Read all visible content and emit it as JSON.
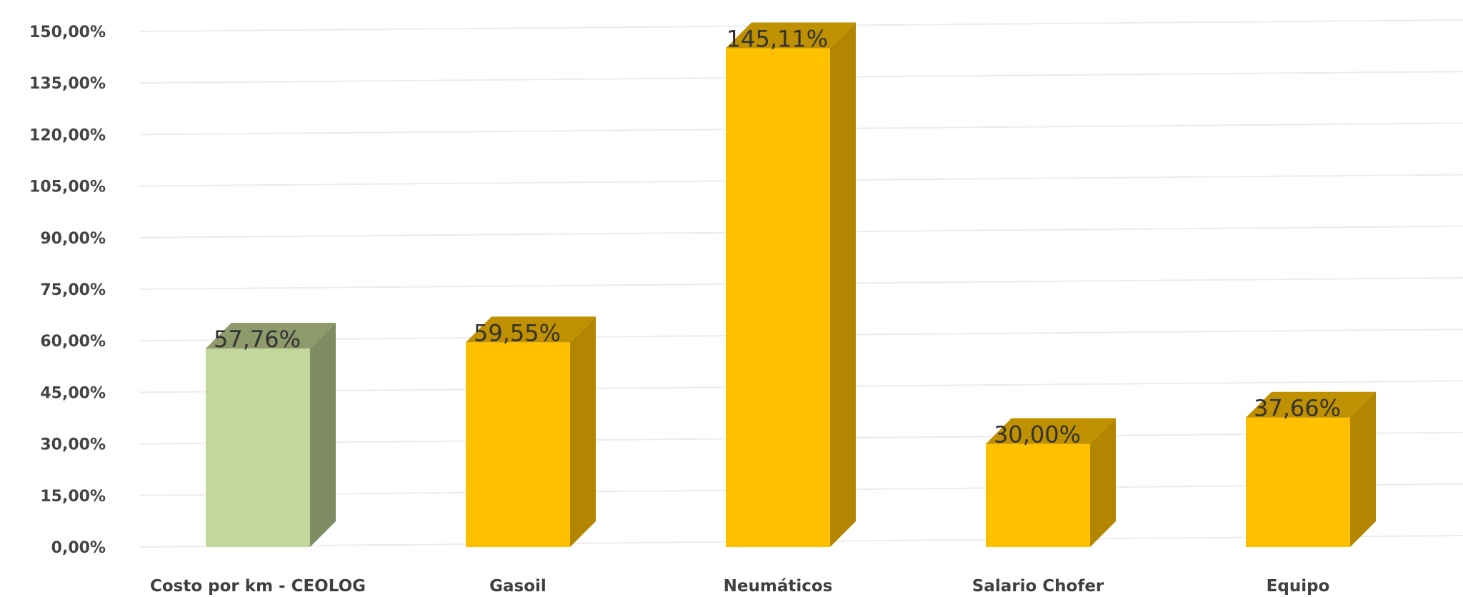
{
  "chart_data": {
    "type": "bar",
    "title": "",
    "xlabel": "",
    "ylabel": "",
    "categories": [
      "Costo por km - CEOLOG",
      "Gasoil",
      "Neumáticos",
      "Salario Chofer",
      "Equipo"
    ],
    "values": [
      57.76,
      59.55,
      145.11,
      30.0,
      37.66
    ],
    "data_labels": [
      "57,76%",
      "59,55%",
      "145,11%",
      "30,00%",
      "37,66%"
    ],
    "ylim": [
      0,
      150
    ],
    "y_ticks": [
      0,
      15,
      30,
      45,
      60,
      75,
      90,
      105,
      120,
      135,
      150
    ],
    "y_tick_labels": [
      "0,00%",
      "15,00%",
      "30,00%",
      "45,00%",
      "60,00%",
      "75,00%",
      "90,00%",
      "105,00%",
      "120,00%",
      "135,00%",
      "150,00%"
    ],
    "grid": true,
    "legend": "none",
    "style": "3d-column",
    "colors": {
      "highlight_front": "#c3d69b",
      "highlight_side": "#7f8b62",
      "highlight_top": "#8e9a6c",
      "bar_front": "#ffc000",
      "bar_side": "#b38600",
      "bar_top": "#bf9000"
    },
    "highlight_index": 0
  }
}
